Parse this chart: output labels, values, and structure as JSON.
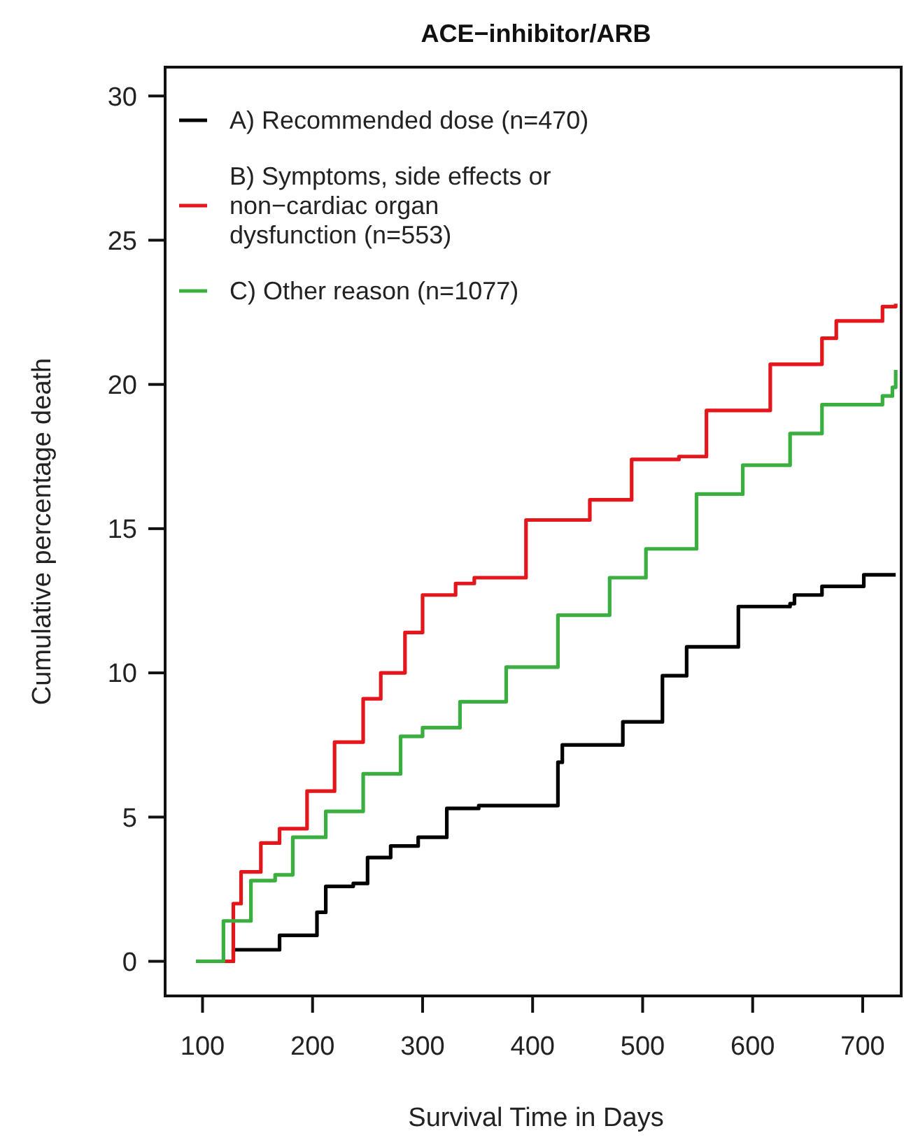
{
  "chart_data": {
    "type": "step",
    "title": "ACE−inhibitor/ARB",
    "xlabel": "Survival Time in Days",
    "ylabel": "Cumulative percentage death",
    "xlim": [
      66,
      735
    ],
    "ylim": [
      -1.2,
      31
    ],
    "xticks": [
      100,
      200,
      300,
      400,
      500,
      600,
      700
    ],
    "yticks": [
      0,
      5,
      10,
      15,
      20,
      25,
      30
    ],
    "legend": "top left",
    "grid": false,
    "series": [
      {
        "name": "A) Recommended dose (n=470)",
        "color": "#000000",
        "x": [
          94,
          125,
          128,
          170,
          204,
          212,
          237,
          250,
          271,
          296,
          322,
          351,
          423,
          427,
          482,
          518,
          540,
          587,
          634,
          638,
          663,
          701,
          730
        ],
        "values": [
          0,
          0,
          0.4,
          0.9,
          1.7,
          2.6,
          2.7,
          3.6,
          4.0,
          4.3,
          5.3,
          5.4,
          6.9,
          7.5,
          8.3,
          9.9,
          10.9,
          12.3,
          12.4,
          12.7,
          13.0,
          13.4,
          13.4
        ]
      },
      {
        "name": "B) Symptoms, side effects or non−cardiac organ dysfunction (n=553)",
        "color": "#e3161c",
        "x": [
          94,
          128,
          135,
          153,
          170,
          195,
          220,
          246,
          262,
          284,
          300,
          330,
          347,
          394,
          452,
          490,
          533,
          558,
          616,
          663,
          676,
          718,
          730
        ],
        "values": [
          0,
          2.0,
          3.1,
          4.1,
          4.6,
          5.9,
          7.6,
          9.1,
          10.0,
          11.4,
          12.7,
          13.1,
          13.3,
          15.3,
          16.0,
          17.4,
          17.5,
          19.1,
          20.7,
          21.6,
          22.2,
          22.7,
          22.8
        ]
      },
      {
        "name": "C) Other reason (n=1077)",
        "color": "#3aae3f",
        "x": [
          94,
          119,
          144,
          166,
          182,
          212,
          246,
          280,
          300,
          334,
          376,
          423,
          470,
          503,
          549,
          591,
          634,
          663,
          718,
          727,
          730
        ],
        "values": [
          0,
          1.4,
          2.8,
          3.0,
          4.3,
          5.2,
          6.5,
          7.8,
          8.1,
          9.0,
          10.2,
          12.0,
          13.3,
          14.3,
          16.2,
          17.2,
          18.3,
          19.3,
          19.6,
          19.9,
          20.5
        ]
      }
    ]
  }
}
